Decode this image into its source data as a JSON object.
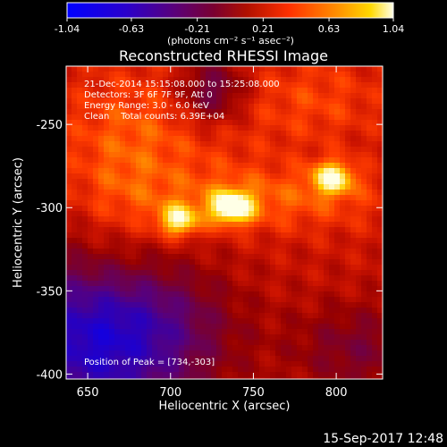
{
  "chart_data": {
    "type": "heatmap",
    "title": "Reconstructed RHESSI Image",
    "xlabel": "Heliocentric X (arcsec)",
    "ylabel": "Heliocentric Y (arcsec)",
    "xlim": [
      637,
      828
    ],
    "ylim": [
      -403,
      -215
    ],
    "x_ticks": [
      "650",
      "700",
      "750",
      "800"
    ],
    "x_tick_values": [
      650,
      700,
      750,
      800
    ],
    "y_ticks": [
      "-250",
      "-300",
      "-350",
      "-400"
    ],
    "y_tick_values": [
      -250,
      -300,
      -350,
      -400
    ],
    "colorbar": {
      "ticks": [
        "-1.04",
        "-0.63",
        "-0.21",
        "0.21",
        "0.63",
        "1.04"
      ],
      "tick_values": [
        -1.04,
        -0.63,
        -0.21,
        0.21,
        0.63,
        1.04
      ],
      "range": [
        -1.04,
        1.04
      ],
      "units": "(photons cm⁻² s⁻¹ asec⁻²)"
    },
    "sources": [
      {
        "x": 705,
        "y": -308,
        "intensity": 0.85
      },
      {
        "x": 737,
        "y": -300,
        "intensity": 1.04
      },
      {
        "x": 798,
        "y": -282,
        "intensity": 0.9
      }
    ]
  },
  "annotations": {
    "line1": "21-Dec-2014 15:15:08.000 to 15:25:08.000",
    "line2": "Detectors: 3F 6F 7F 9F, Att 0",
    "line3": "Energy Range: 3.0 - 6.0 keV",
    "line4": "Clean    Total counts: 6.39E+04",
    "peak": "Position of Peak = [734,-303]"
  },
  "footer": {
    "timestamp": "15-Sep-2017 12:48"
  }
}
